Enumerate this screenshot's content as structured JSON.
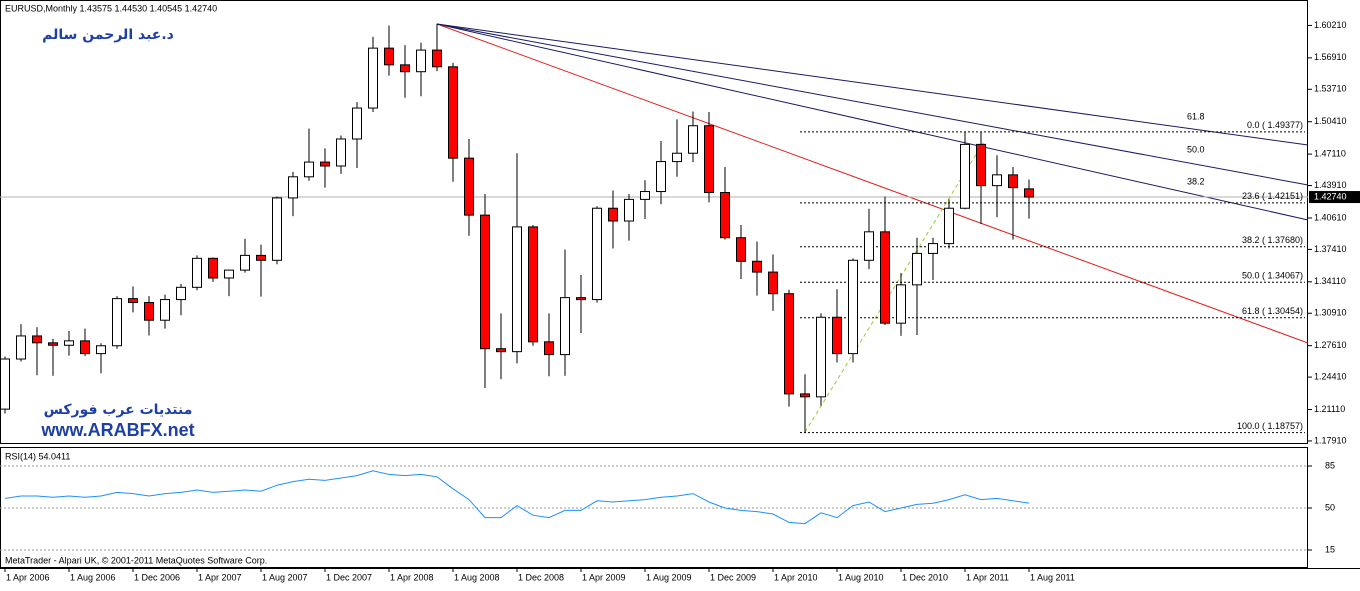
{
  "chart_data": [
    {
      "type": "candlestick",
      "title": "EURUSD,Monthly  1.43575 1.44530 1.40545 1.42740",
      "categories": [
        "1 Apr 2006",
        null,
        null,
        null,
        "1 Aug 2006",
        null,
        null,
        null,
        "1 Dec 2006",
        null,
        null,
        null,
        "1 Apr 2007",
        null,
        null,
        null,
        "1 Aug 2007",
        null,
        null,
        null,
        "1 Dec 2007",
        null,
        null,
        null,
        "1 Apr 2008",
        null,
        null,
        null,
        "1 Aug 2008",
        null,
        null,
        null,
        "1 Dec 2008",
        null,
        null,
        null,
        "1 Apr 2009",
        null,
        null,
        null,
        "1 Aug 2009",
        null,
        null,
        null,
        "1 Dec 2009",
        null,
        null,
        null,
        "1 Apr 2010",
        null,
        null,
        null,
        "1 Aug 2010",
        null,
        null,
        null,
        "1 Dec 2010",
        null,
        null,
        null,
        "1 Apr 2011",
        null,
        null,
        null,
        "1 Aug 2011"
      ],
      "open": [
        1.2115,
        1.2625,
        1.286,
        1.279,
        1.2765,
        1.281,
        1.268,
        1.276,
        1.324,
        1.32,
        1.302,
        1.323,
        1.3355,
        1.365,
        1.345,
        1.353,
        1.368,
        1.363,
        1.4265,
        1.448,
        1.463,
        1.459,
        1.4865,
        1.518,
        1.579,
        1.562,
        1.555,
        1.577,
        1.56,
        1.467,
        1.409,
        1.273,
        1.27,
        1.397,
        1.28,
        1.267,
        1.325,
        1.323,
        1.416,
        1.403,
        1.425,
        1.433,
        1.4635,
        1.472,
        1.5,
        1.432,
        1.386,
        1.362,
        1.351,
        1.329,
        1.227,
        1.224,
        1.305,
        1.268,
        1.363,
        1.392,
        1.299,
        1.338,
        1.37,
        1.38,
        1.416,
        1.481,
        1.439,
        1.45,
        1.43575
      ],
      "high": [
        1.265,
        1.298,
        1.295,
        1.283,
        1.291,
        1.2935,
        1.2785,
        1.3265,
        1.3365,
        1.3265,
        1.328,
        1.339,
        1.368,
        1.366,
        1.3535,
        1.385,
        1.379,
        1.428,
        1.453,
        1.497,
        1.477,
        1.49,
        1.524,
        1.5905,
        1.602,
        1.582,
        1.5845,
        1.604,
        1.564,
        1.4865,
        1.4305,
        1.309,
        1.472,
        1.399,
        1.309,
        1.374,
        1.348,
        1.418,
        1.434,
        1.4305,
        1.4445,
        1.4845,
        1.5065,
        1.5145,
        1.514,
        1.458,
        1.399,
        1.382,
        1.369,
        1.333,
        1.247,
        1.309,
        1.3335,
        1.365,
        1.4155,
        1.428,
        1.35,
        1.386,
        1.386,
        1.425,
        1.494,
        1.494,
        1.47,
        1.458,
        1.4453
      ],
      "low": [
        1.207,
        1.26,
        1.246,
        1.2455,
        1.266,
        1.2655,
        1.248,
        1.273,
        1.31,
        1.2865,
        1.2935,
        1.307,
        1.3325,
        1.341,
        1.3265,
        1.3505,
        1.326,
        1.359,
        1.408,
        1.444,
        1.437,
        1.451,
        1.457,
        1.514,
        1.551,
        1.5285,
        1.53,
        1.5555,
        1.443,
        1.388,
        1.233,
        1.242,
        1.258,
        1.276,
        1.245,
        1.2455,
        1.289,
        1.32,
        1.375,
        1.383,
        1.405,
        1.42,
        1.448,
        1.463,
        1.422,
        1.384,
        1.344,
        1.327,
        1.3115,
        1.214,
        1.1875,
        1.215,
        1.259,
        1.259,
        1.354,
        1.297,
        1.286,
        1.287,
        1.343,
        1.375,
        1.415,
        1.4,
        1.407,
        1.384,
        1.40545
      ],
      "close": [
        1.2625,
        1.286,
        1.279,
        1.2765,
        1.281,
        1.268,
        1.276,
        1.324,
        1.32,
        1.302,
        1.323,
        1.3355,
        1.365,
        1.345,
        1.353,
        1.368,
        1.363,
        1.4265,
        1.448,
        1.463,
        1.459,
        1.4865,
        1.518,
        1.579,
        1.562,
        1.555,
        1.577,
        1.56,
        1.467,
        1.409,
        1.273,
        1.27,
        1.397,
        1.28,
        1.267,
        1.325,
        1.323,
        1.416,
        1.403,
        1.425,
        1.433,
        1.4635,
        1.472,
        1.5,
        1.432,
        1.386,
        1.362,
        1.351,
        1.329,
        1.227,
        1.224,
        1.305,
        1.268,
        1.363,
        1.392,
        1.299,
        1.338,
        1.37,
        1.38,
        1.416,
        1.481,
        1.439,
        1.45,
        1.437,
        1.4274
      ],
      "up_color": "#ffffff",
      "down_color": "#ff0000",
      "ylim": [
        1.177,
        1.628
      ],
      "yticks": [
        {
          "value": 1.6021,
          "label": "1.60210"
        },
        {
          "value": 1.5691,
          "label": "1.56910"
        },
        {
          "value": 1.5371,
          "label": "1.53710"
        },
        {
          "value": 1.5041,
          "label": "1.50410"
        },
        {
          "value": 1.4711,
          "label": "1.47110"
        },
        {
          "value": 1.4391,
          "label": "1.43910"
        },
        {
          "value": 1.4061,
          "label": "1.40610"
        },
        {
          "value": 1.3741,
          "label": "1.37410"
        },
        {
          "value": 1.3411,
          "label": "1.34110"
        },
        {
          "value": 1.3091,
          "label": "1.30910"
        },
        {
          "value": 1.2761,
          "label": "1.27610"
        },
        {
          "value": 1.2441,
          "label": "1.24410"
        },
        {
          "value": 1.2111,
          "label": "1.21110"
        },
        {
          "value": 1.1791,
          "label": "1.17910"
        }
      ],
      "current_price": {
        "value": 1.4274,
        "label": "1.42740"
      },
      "fib_levels": [
        {
          "value": 1.49377,
          "label": "0.0 ( 1.49377)"
        },
        {
          "value": 1.42151,
          "label": "23.6 ( 1.42151)"
        },
        {
          "value": 1.3768,
          "label": "38.2 ( 1.37680)"
        },
        {
          "value": 1.34067,
          "label": "50.0 ( 1.34067)"
        },
        {
          "value": 1.30454,
          "label": "61.8 ( 1.30454)"
        },
        {
          "value": 1.18757,
          "label": "100.0 ( 1.18757)"
        }
      ],
      "fan_labels": [
        "61.8",
        "50.0",
        "38.2"
      ],
      "annotations": [
        "د.عبد الرحمن سالم",
        "منتديات عرب فوركس",
        "www.ARABFX.net"
      ]
    },
    {
      "type": "line",
      "title": "RSI(14) 54.0411",
      "values": [
        58,
        60,
        60,
        59,
        60,
        59,
        60,
        63,
        62,
        60,
        62,
        63,
        65,
        63,
        64,
        65,
        64,
        69,
        72,
        74,
        73,
        75,
        77,
        81,
        78,
        77,
        78,
        76,
        66,
        57,
        42,
        42,
        52,
        44,
        42,
        48,
        48,
        56,
        55,
        56,
        57,
        59,
        60,
        62,
        55,
        50,
        48,
        47,
        45,
        38,
        37,
        46,
        42,
        52,
        55,
        47,
        50,
        53,
        54,
        57,
        61,
        57,
        58,
        56,
        54.0411
      ],
      "color": "#1e90ff",
      "ylim": [
        0,
        100
      ],
      "yticks": [
        85,
        50,
        15
      ]
    }
  ],
  "footer": "MetaTrader - Alpari UK, © 2001-2011 MetaQuotes Software Corp."
}
